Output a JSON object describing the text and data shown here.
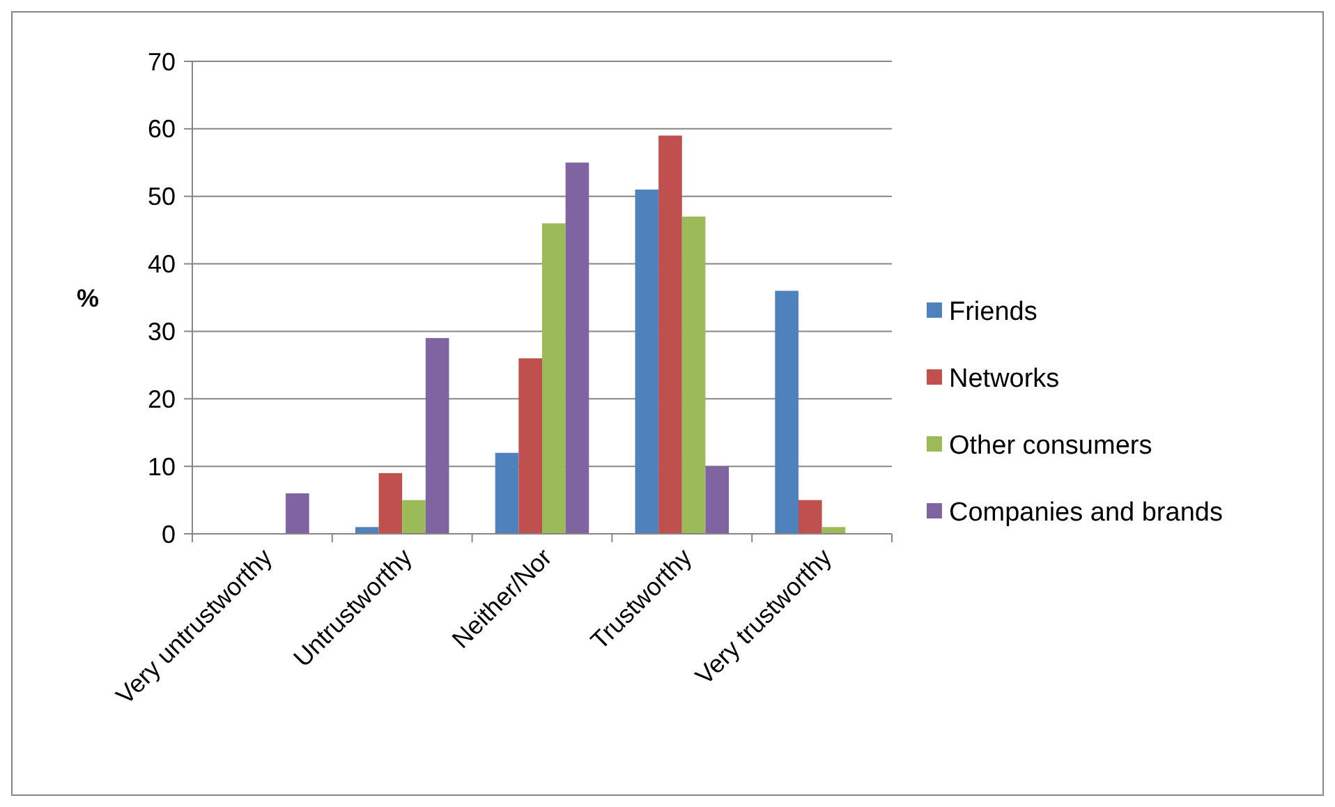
{
  "chart_data": {
    "type": "bar",
    "ylabel": "%",
    "categories": [
      "Very untrustworthy",
      "Untrustworthy",
      "Neither/Nor",
      "Trustworthy",
      "Very trustworthy"
    ],
    "series": [
      {
        "name": "Friends",
        "color": "#4f81bd",
        "values": [
          0,
          1,
          12,
          51,
          36
        ]
      },
      {
        "name": "Networks",
        "color": "#c0504d",
        "values": [
          0,
          9,
          26,
          59,
          5
        ]
      },
      {
        "name": "Other consumers",
        "color": "#9bbb59",
        "values": [
          0,
          5,
          46,
          47,
          1
        ]
      },
      {
        "name": "Companies and brands",
        "color": "#8064a2",
        "values": [
          6,
          29,
          55,
          10,
          0
        ]
      }
    ],
    "ylim": [
      0,
      70
    ],
    "yticks": [
      0,
      10,
      20,
      30,
      40,
      50,
      60,
      70
    ],
    "grid": "y",
    "legend": "right"
  }
}
